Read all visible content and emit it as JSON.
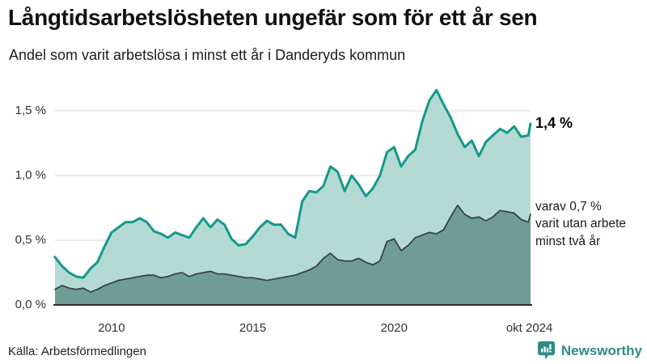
{
  "header": {
    "title": "Långtidsarbetslösheten ungefär som för ett år sen",
    "subtitle": "Andel som varit arbetslösa i minst ett år i Danderyds kommun"
  },
  "chart_data": {
    "type": "area",
    "title": "Långtidsarbetslösheten ungefär som för ett år sen",
    "subtitle": "Andel som varit arbetslösa i minst ett år i Danderyds kommun",
    "xlabel": "",
    "ylabel": "",
    "xlim": [
      2008,
      2024.83
    ],
    "ylim": [
      0,
      1.72
    ],
    "grid": "horizontal",
    "legend_position": "none",
    "x_ticks": [
      {
        "value": 2010,
        "label": "2010"
      },
      {
        "value": 2015,
        "label": "2015"
      },
      {
        "value": 2020,
        "label": "2020"
      },
      {
        "value": 2024.79,
        "label": "okt 2024"
      }
    ],
    "y_ticks": [
      {
        "value": 1.5,
        "label": "1,5 %"
      },
      {
        "value": 1.0,
        "label": "1,0 %"
      },
      {
        "value": 0.5,
        "label": "0,5 %"
      },
      {
        "value": 0.0,
        "label": "0,0 %"
      }
    ],
    "x": [
      2008,
      2008.25,
      2008.5,
      2008.75,
      2009,
      2009.25,
      2009.5,
      2009.75,
      2010,
      2010.25,
      2010.5,
      2010.75,
      2011,
      2011.25,
      2011.5,
      2011.75,
      2012,
      2012.25,
      2012.5,
      2012.75,
      2013,
      2013.25,
      2013.5,
      2013.75,
      2014,
      2014.25,
      2014.5,
      2014.75,
      2015,
      2015.25,
      2015.5,
      2015.75,
      2016,
      2016.25,
      2016.5,
      2016.75,
      2017,
      2017.25,
      2017.5,
      2017.75,
      2018,
      2018.25,
      2018.5,
      2018.75,
      2019,
      2019.25,
      2019.5,
      2019.75,
      2020,
      2020.25,
      2020.5,
      2020.75,
      2021,
      2021.25,
      2021.5,
      2021.75,
      2022,
      2022.25,
      2022.5,
      2022.75,
      2023,
      2023.25,
      2023.5,
      2023.75,
      2024,
      2024.25,
      2024.5,
      2024.75,
      2024.83
    ],
    "series": [
      {
        "name": "Arbetslösa minst ett år",
        "values": [
          0.37,
          0.3,
          0.25,
          0.22,
          0.21,
          0.28,
          0.33,
          0.45,
          0.56,
          0.6,
          0.64,
          0.64,
          0.67,
          0.64,
          0.57,
          0.55,
          0.52,
          0.56,
          0.54,
          0.52,
          0.6,
          0.67,
          0.6,
          0.66,
          0.62,
          0.51,
          0.46,
          0.47,
          0.53,
          0.6,
          0.65,
          0.62,
          0.62,
          0.55,
          0.52,
          0.8,
          0.88,
          0.87,
          0.92,
          1.07,
          1.03,
          0.88,
          1.0,
          0.93,
          0.84,
          0.9,
          1.0,
          1.18,
          1.22,
          1.07,
          1.15,
          1.2,
          1.42,
          1.58,
          1.66,
          1.55,
          1.45,
          1.32,
          1.22,
          1.27,
          1.15,
          1.26,
          1.31,
          1.36,
          1.33,
          1.38,
          1.3,
          1.31,
          1.4
        ],
        "fill": "#b5dad4",
        "line": "#13998b",
        "line_width": 3
      },
      {
        "name": "Utan arbete minst två år",
        "values": [
          0.12,
          0.15,
          0.13,
          0.12,
          0.13,
          0.1,
          0.12,
          0.15,
          0.17,
          0.19,
          0.2,
          0.21,
          0.22,
          0.23,
          0.23,
          0.21,
          0.22,
          0.24,
          0.25,
          0.22,
          0.24,
          0.25,
          0.26,
          0.24,
          0.24,
          0.23,
          0.22,
          0.21,
          0.21,
          0.2,
          0.19,
          0.2,
          0.21,
          0.22,
          0.23,
          0.25,
          0.27,
          0.3,
          0.36,
          0.4,
          0.35,
          0.34,
          0.34,
          0.36,
          0.33,
          0.31,
          0.34,
          0.49,
          0.51,
          0.42,
          0.46,
          0.52,
          0.54,
          0.56,
          0.55,
          0.58,
          0.68,
          0.77,
          0.7,
          0.67,
          0.68,
          0.65,
          0.68,
          0.73,
          0.72,
          0.71,
          0.66,
          0.64,
          0.7
        ],
        "fill": "#6f9c95",
        "line": "#3a4340",
        "line_width": 1.8
      }
    ],
    "annotations": {
      "end_label_total": "1,4 %",
      "end_label_sub": [
        "varav 0,7 %",
        "varit utan arbete",
        "minst två år"
      ]
    },
    "colors": {
      "grid": "#dcdcdc",
      "axis": "#2f2f2f"
    }
  },
  "footer": {
    "source": "Källa: Arbetsförmedlingen",
    "brand": "Newsworthy",
    "brand_color": "#2f8c84"
  }
}
